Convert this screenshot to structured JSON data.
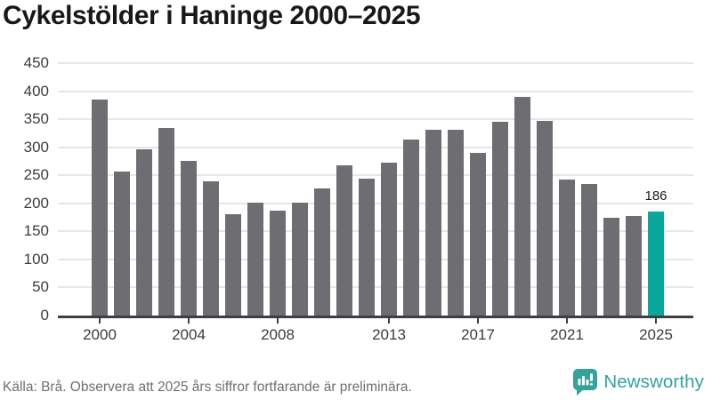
{
  "title": "Cykelstölder i Haninge 2000–2025",
  "chart_data": {
    "type": "bar",
    "title": "Cykelstölder i Haninge 2000–2025",
    "x": [
      2000,
      2001,
      2002,
      2003,
      2004,
      2005,
      2006,
      2007,
      2008,
      2009,
      2010,
      2011,
      2012,
      2013,
      2014,
      2015,
      2016,
      2017,
      2018,
      2019,
      2020,
      2021,
      2022,
      2023,
      2024,
      2025
    ],
    "values": [
      385,
      256,
      297,
      335,
      275,
      240,
      180,
      202,
      187,
      202,
      227,
      267,
      244,
      273,
      314,
      331,
      331,
      290,
      345,
      390,
      347,
      243,
      234,
      175,
      178,
      186
    ],
    "x_tick_labels": [
      "2000",
      "2004",
      "2008",
      "2013",
      "2017",
      "2021",
      "2025"
    ],
    "y_ticks": [
      0,
      50,
      100,
      150,
      200,
      250,
      300,
      350,
      400,
      450
    ],
    "ylim": [
      0,
      450
    ],
    "grid": "horizontal",
    "legend": "none",
    "highlight_x": 2025,
    "annotation": {
      "x": 2025,
      "label": "186"
    },
    "colors": {
      "bar": "#6d6d72",
      "highlight": "#0aa79c",
      "gridline": "#e6e6e6",
      "axis": "#3f3f3f",
      "tick_text": "#3c3c3c",
      "value_label": "#191919"
    }
  },
  "footer": {
    "source": "Källa: Brå. Observera att 2025 års siffror fortfarande är preliminära.",
    "logo_text": "Newsworthy",
    "logo_color": "#35a29b"
  }
}
